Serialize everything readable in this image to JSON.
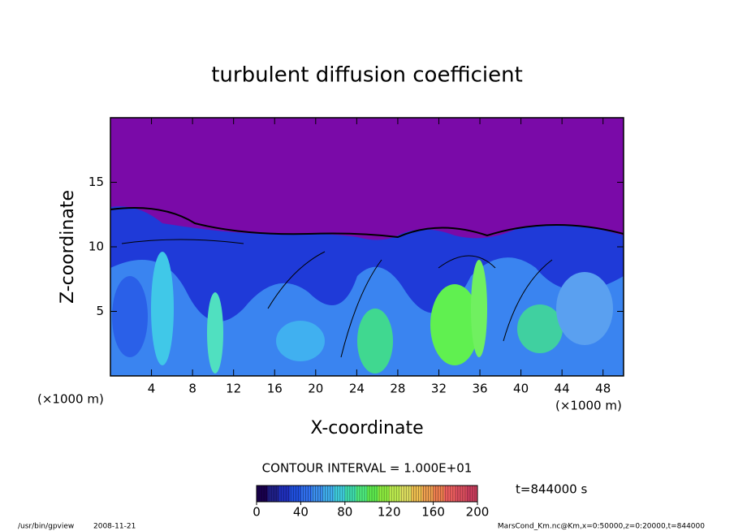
{
  "chart_data": {
    "type": "contour",
    "title": "turbulent diffusion coefficient",
    "x_label": "X-coordinate",
    "y_label": "Z-coordinate",
    "x_unit": "(×1000 m)",
    "y_unit": "(×1000 m)",
    "xlim": [
      0,
      50
    ],
    "xticks": [
      4,
      8,
      12,
      16,
      20,
      24,
      28,
      32,
      36,
      40,
      44,
      48
    ],
    "ylim": [
      0,
      20
    ],
    "yticks": [
      5,
      10,
      15
    ],
    "contour_interval": "CONTOUR INTERVAL = 1.000E+01",
    "time_label": "t=844000 s",
    "colorbar": {
      "lim": [
        0,
        200
      ],
      "ticks": [
        0,
        40,
        80,
        120,
        160,
        200
      ],
      "colors": [
        "#1a0050",
        "#20208a",
        "#2030c0",
        "#2050e0",
        "#3070f0",
        "#3c90f0",
        "#40b0f0",
        "#40d0e0",
        "#40e0b0",
        "#50f080",
        "#60f050",
        "#90f040",
        "#c0f050",
        "#e0e060",
        "#f0c050",
        "#f0a050",
        "#f08050",
        "#f06060",
        "#e05060",
        "#d04060"
      ]
    },
    "footer_left": "/usr/bin/gpview",
    "footer_date": "2008-11-21",
    "footer_right": "MarsCond_Km.nc@Km,x=0:50000,z=0:20000,t=844000"
  }
}
